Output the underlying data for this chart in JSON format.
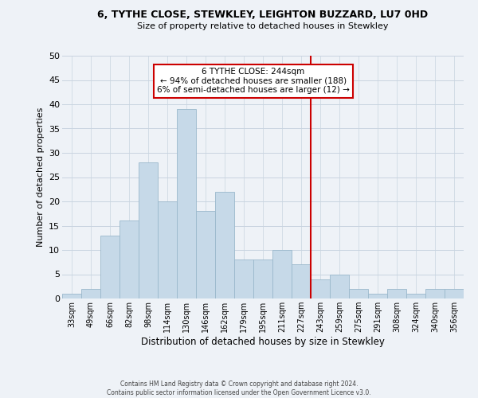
{
  "title_line1": "6, TYTHE CLOSE, STEWKLEY, LEIGHTON BUZZARD, LU7 0HD",
  "title_line2": "Size of property relative to detached houses in Stewkley",
  "xlabel": "Distribution of detached houses by size in Stewkley",
  "ylabel": "Number of detached properties",
  "bar_labels": [
    "33sqm",
    "49sqm",
    "66sqm",
    "82sqm",
    "98sqm",
    "114sqm",
    "130sqm",
    "146sqm",
    "162sqm",
    "179sqm",
    "195sqm",
    "211sqm",
    "227sqm",
    "243sqm",
    "259sqm",
    "275sqm",
    "291sqm",
    "308sqm",
    "324sqm",
    "340sqm",
    "356sqm"
  ],
  "bar_values": [
    1,
    2,
    13,
    16,
    28,
    20,
    39,
    18,
    22,
    8,
    8,
    10,
    7,
    4,
    5,
    2,
    1,
    2,
    1,
    2,
    2
  ],
  "bar_color": "#c6d9e8",
  "bar_edge_color": "#9ab8cc",
  "vline_color": "#cc0000",
  "annotation_text": "6 TYTHE CLOSE: 244sqm\n← 94% of detached houses are smaller (188)\n6% of semi-detached houses are larger (12) →",
  "annotation_box_color": "#ffffff",
  "annotation_box_edge_color": "#cc0000",
  "ylim": [
    0,
    50
  ],
  "yticks": [
    0,
    5,
    10,
    15,
    20,
    25,
    30,
    35,
    40,
    45,
    50
  ],
  "grid_color": "#c8d4e0",
  "footer_line1": "Contains HM Land Registry data © Crown copyright and database right 2024.",
  "footer_line2": "Contains public sector information licensed under the Open Government Licence v3.0.",
  "bg_color": "#eef2f7"
}
